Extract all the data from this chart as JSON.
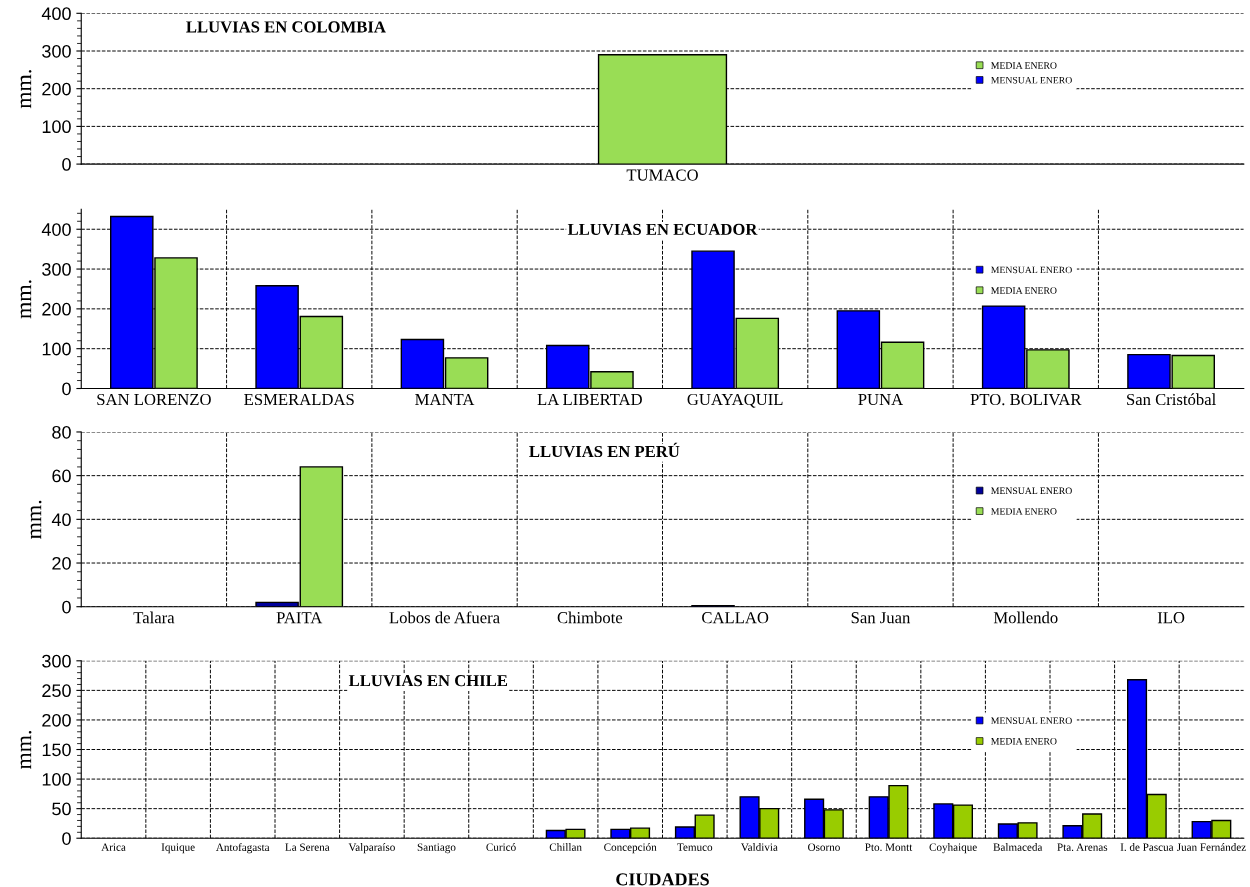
{
  "chart_data": [
    {
      "type": "bar",
      "title": "LLUVIAS EN COLOMBIA",
      "ylabel": "mm.",
      "categories": [
        "TUMACO"
      ],
      "series": [
        {
          "name": "MEDIA ENERO",
          "color": "#99dd55",
          "values": [
            290
          ]
        },
        {
          "name": "MENSUAL ENERO",
          "color": "#0000ff",
          "values": [
            null
          ]
        }
      ],
      "ylim": [
        0,
        400
      ],
      "yticks": [
        0,
        100,
        200,
        300,
        400
      ],
      "grid": "y",
      "legend": "right"
    },
    {
      "type": "bar",
      "title": "LLUVIAS EN ECUADOR",
      "ylabel": "mm.",
      "categories": [
        "SAN LORENZO",
        "ESMERALDAS",
        "MANTA",
        "LA LIBERTAD",
        "GUAYAQUIL",
        "PUNA",
        "PTO. BOLIVAR",
        "San Cristóbal"
      ],
      "series": [
        {
          "name": "MENSUAL ENERO",
          "color": "#0000ff",
          "values": [
            432,
            258,
            123,
            108,
            345,
            195,
            207,
            85
          ]
        },
        {
          "name": "MEDIA ENERO",
          "color": "#99dd55",
          "values": [
            328,
            181,
            77,
            42,
            176,
            116,
            97,
            83
          ]
        }
      ],
      "ylim": [
        0,
        450
      ],
      "yticks": [
        0,
        100,
        200,
        300,
        400
      ],
      "grid": true,
      "legend": "right"
    },
    {
      "type": "bar",
      "title": "LLUVIAS EN PERÚ",
      "ylabel": "mm.",
      "categories": [
        "Talara",
        "PAITA",
        "Lobos de Afuera",
        "Chimbote",
        "CALLAO",
        "San Juan",
        "Mollendo",
        "ILO"
      ],
      "series": [
        {
          "name": "MENSUAL ENERO",
          "color": "#000099",
          "values": [
            null,
            2,
            null,
            null,
            0.5,
            null,
            null,
            null
          ]
        },
        {
          "name": "MEDIA ENERO",
          "color": "#99dd55",
          "values": [
            null,
            64,
            null,
            null,
            null,
            null,
            null,
            null
          ]
        }
      ],
      "ylim": [
        0,
        80
      ],
      "yticks": [
        0,
        20,
        40,
        60,
        80
      ],
      "grid": true,
      "legend": "right"
    },
    {
      "type": "bar",
      "title": "LLUVIAS EN CHILE",
      "ylabel": "mm.",
      "xlabel": "CIUDADES",
      "categories": [
        "Arica",
        "Iquique",
        "Antofagasta",
        "La Serena",
        "Valparaíso",
        "Santiago",
        "Curicó",
        "Chillan",
        "Concepción",
        "Temuco",
        "Valdivia",
        "Osorno",
        "Pto. Montt",
        "Coyhaique",
        "Balmaceda",
        "Pta. Arenas",
        "I. de Pascua",
        "Juan Fernández"
      ],
      "series": [
        {
          "name": "MENSUAL ENERO",
          "color": "#0000ff",
          "values": [
            null,
            null,
            null,
            null,
            null,
            null,
            null,
            13,
            15,
            19,
            70,
            66,
            70,
            58,
            24,
            21,
            268,
            28
          ]
        },
        {
          "name": "MEDIA ENERO",
          "color": "#99cc00",
          "values": [
            null,
            null,
            null,
            null,
            null,
            null,
            null,
            15,
            17,
            39,
            50,
            48,
            89,
            56,
            26,
            41,
            74,
            30
          ]
        }
      ],
      "ylim": [
        0,
        300
      ],
      "yticks": [
        0,
        50,
        100,
        150,
        200,
        250,
        300
      ],
      "grid": true,
      "legend": "right"
    }
  ]
}
